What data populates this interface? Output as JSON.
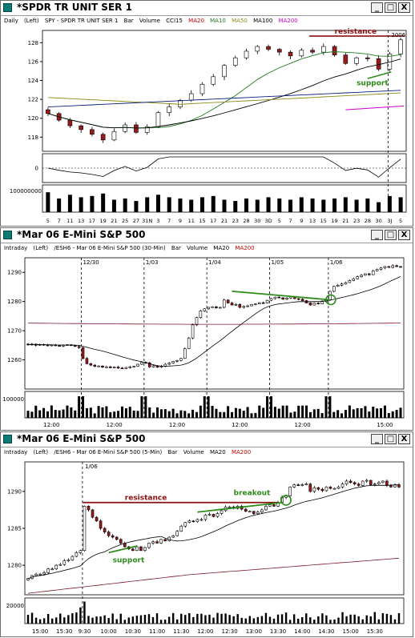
{
  "windows": [
    {
      "title": "*SPDR TR UNIT SER 1",
      "info": [
        "Daily",
        "(Left)",
        "SPY - SPDR TR UNIT SER 1",
        "Bar",
        "Volume",
        "CCI15",
        "MA20",
        "MA10",
        "MA50",
        "MA100",
        "MA200"
      ],
      "buttons": {
        "minimize": "_",
        "maximize": "□",
        "close": "X"
      }
    },
    {
      "title": "*Mar 06  E-Mini S&P 500",
      "info": [
        "Intraday",
        "(Left)",
        "/ESH6 - Mar 06  E-Mini S&P 500 (30-Min)",
        "Bar",
        "Volume",
        "MA20",
        "MA200"
      ],
      "buttons": {
        "minimize": "_",
        "maximize": "□",
        "close": "X"
      }
    },
    {
      "title": "*Mar 06  E-Mini S&P 500",
      "info": [
        "Intraday",
        "(Left)",
        "/ESH6 - Mar 06  E-Mini S&P 500 (5-Min)",
        "Bar",
        "Volume",
        "MA20",
        "MA200"
      ],
      "buttons": {
        "minimize": "_",
        "maximize": "□",
        "close": "X"
      }
    }
  ],
  "colors": {
    "up_bar": "#ffffff",
    "down_bar": "#9b1b1b",
    "ma20": "#000000",
    "ma10": "#1f7a1f",
    "ma50": "#8a8a1a",
    "ma100": "#0a1f7a",
    "ma200": "#7a1a2a",
    "ma200_daily": "#cc00cc",
    "annotation_green": "#2e8b1a",
    "annotation_red": "#8b1010"
  },
  "chart_data": [
    {
      "type": "candlestick",
      "title": "SPY - SPDR TR UNIT SER 1",
      "ylim": [
        116.5,
        129.3
      ],
      "yticks": [
        "118",
        "120",
        "122",
        "124",
        "126",
        "128"
      ],
      "x": [
        "5",
        "7",
        "11",
        "13",
        "17",
        "19",
        "21",
        "25",
        "27",
        "31N",
        "3",
        "7",
        "9",
        "11",
        "15",
        "17",
        "21",
        "23",
        "28",
        "30",
        "3D",
        "5",
        "7",
        "9",
        "13",
        "15",
        "19",
        "21",
        "23",
        "28",
        "30",
        "3J",
        "5"
      ],
      "series_close": [
        120.5,
        119.8,
        119.2,
        118.8,
        118.3,
        117.7,
        118.6,
        119.3,
        118.5,
        119.1,
        120.6,
        121.2,
        121.9,
        122.6,
        123.6,
        124.4,
        125.6,
        126.4,
        127.1,
        127.6,
        127.3,
        127.0,
        126.6,
        127.2,
        127.0,
        127.6,
        126.7,
        125.8,
        126.4,
        126.3,
        125.2,
        126.8,
        128.3
      ],
      "indicators": [
        "MA20",
        "MA10",
        "MA50",
        "MA100",
        "MA200"
      ],
      "annotations": {
        "resistance_label": "resistance",
        "resistance_level": 128.7,
        "support_label": "support",
        "year_label": "2006"
      },
      "cci": {
        "zero_label": "0",
        "label": "CCI15"
      },
      "volume": {
        "label": "100000000",
        "values": [
          0.8,
          0.55,
          0.7,
          0.6,
          0.65,
          0.75,
          0.5,
          0.55,
          0.45,
          0.6,
          0.7,
          0.6,
          0.55,
          0.5,
          0.6,
          0.65,
          0.5,
          0.45,
          0.55,
          0.5,
          0.6,
          0.55,
          0.5,
          0.6,
          0.55,
          0.5,
          0.55,
          0.6,
          0.5,
          0.55,
          0.4,
          0.65,
          0.6
        ]
      }
    },
    {
      "type": "candlestick",
      "title": "/ESH6 - Mar 06 E-Mini S&P 500 (30-Min)",
      "ylim": [
        1250,
        1295
      ],
      "yticks": [
        "1260",
        "1270",
        "1280",
        "1290"
      ],
      "date_markers": [
        "12/30",
        "1/03",
        "1/04",
        "1/05",
        "1/06"
      ],
      "x_ticks": [
        "12:00",
        "12:00",
        "12:00",
        "12:00",
        "12:00",
        "15:00"
      ],
      "series_close": [
        1265.2,
        1265.4,
        1265.0,
        1265.3,
        1265.1,
        1265.0,
        1265.1,
        1264.9,
        1264.8,
        1265.0,
        1265.2,
        1265.0,
        1264.6,
        1264.2,
        1260.5,
        1258.7,
        1258.2,
        1257.8,
        1257.9,
        1257.5,
        1257.6,
        1257.3,
        1257.5,
        1257.2,
        1257.0,
        1257.4,
        1257.6,
        1257.8,
        1258.5,
        1259.2,
        1259.0,
        1257.6,
        1258.0,
        1257.5,
        1257.8,
        1258.5,
        1258.9,
        1259.5,
        1259.8,
        1260.5,
        1263.8,
        1267.5,
        1272.0,
        1274.5,
        1276.8,
        1277.5,
        1278.0,
        1278.2,
        1277.8,
        1278.0,
        1280.5,
        1279.5,
        1278.8,
        1279.0,
        1278.0,
        1278.3,
        1278.5,
        1279.0,
        1279.2,
        1279.6,
        1279.5,
        1280.4,
        1281.0,
        1281.5,
        1281.3,
        1280.8,
        1281.2,
        1281.6,
        1281.0,
        1280.8,
        1280.3,
        1279.5,
        1278.8,
        1279.5,
        1279.2,
        1280.0,
        1280.6,
        1283.5,
        1285.2,
        1285.6,
        1286.0,
        1286.5,
        1287.2,
        1287.8,
        1288.5,
        1289.0,
        1289.5,
        1289.2,
        1290.5,
        1291.0,
        1291.5,
        1292.0,
        1291.7,
        1292.3,
        1292.0,
        1291.8
      ],
      "indicators": [
        "MA20",
        "MA200"
      ],
      "annotations": {
        "trendline": "green"
      },
      "volume": {
        "label": "100000"
      }
    },
    {
      "type": "candlestick",
      "title": "/ESH6 - Mar 06 E-Mini S&P 500 (5-Min)",
      "ylim": [
        1276,
        1294
      ],
      "yticks": [
        "1280",
        "1285",
        "1290"
      ],
      "date_markers": [
        "1/06"
      ],
      "x_ticks": [
        "15:00",
        "15:30",
        "9:30",
        "10:00",
        "10:30",
        "11:00",
        "11:30",
        "12:00",
        "12:30",
        "13:00",
        "13:30",
        "14:00",
        "14:30",
        "15:00",
        "15:30"
      ],
      "series_close": [
        1278.2,
        1278.6,
        1278.8,
        1278.8,
        1279.0,
        1279.5,
        1279.5,
        1280.0,
        1280.1,
        1280.6,
        1280.7,
        1281.2,
        1281.7,
        1282.0,
        1288.0,
        1287.5,
        1286.5,
        1286.0,
        1285.0,
        1284.5,
        1284.0,
        1283.8,
        1283.5,
        1283.0,
        1282.5,
        1282.2,
        1282.0,
        1282.5,
        1282.0,
        1282.4,
        1283.0,
        1283.2,
        1283.0,
        1283.5,
        1283.3,
        1283.8,
        1284.0,
        1284.6,
        1285.3,
        1285.8,
        1286.0,
        1285.9,
        1286.2,
        1286.2,
        1286.8,
        1286.9,
        1286.6,
        1287.0,
        1287.4,
        1287.9,
        1287.9,
        1287.7,
        1288.0,
        1287.6,
        1287.3,
        1287.3,
        1287.0,
        1287.2,
        1287.5,
        1288.0,
        1288.2,
        1288.0,
        1288.5,
        1289.2,
        1289.4,
        1290.6,
        1290.9,
        1290.8,
        1290.9,
        1291.0,
        1290.0,
        1290.5,
        1290.3,
        1290.1,
        1290.6,
        1290.4,
        1290.4,
        1290.6,
        1291.0,
        1291.4,
        1291.2,
        1291.0,
        1290.8,
        1291.4,
        1291.5,
        1290.9,
        1291.0,
        1291.2,
        1291.4,
        1290.8,
        1290.6,
        1290.9,
        1290.6
      ],
      "indicators": [
        "MA20",
        "MA200"
      ],
      "annotations": {
        "resistance_label": "resistance",
        "resistance_level": 1288.5,
        "support_label": "support",
        "breakout_label": "breakout"
      },
      "volume": {
        "label": "20000"
      }
    }
  ]
}
